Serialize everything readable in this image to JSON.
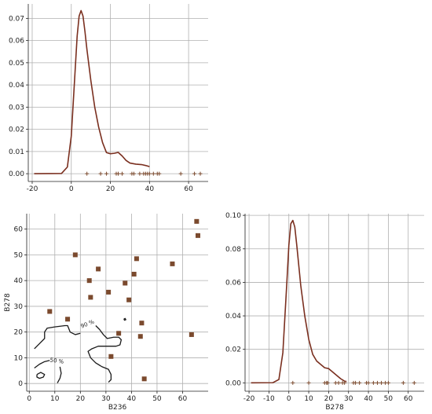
{
  "colors": {
    "curve": "#7a2f1f",
    "marker": "#7b4a2e",
    "contour": "#1a1a1a",
    "grid": "#b0b0b0"
  },
  "chart_data": [
    {
      "id": "kde_b236",
      "type": "line",
      "xlabel": "",
      "ylabel": "",
      "xlim": [
        -22,
        70
      ],
      "ylim": [
        -0.0035,
        0.0765
      ],
      "xticks": [
        -20,
        0,
        20,
        40,
        60
      ],
      "yticks": [
        0.0,
        0.01,
        0.02,
        0.03,
        0.04,
        0.05,
        0.06,
        0.07
      ],
      "grid": true,
      "density_x": [
        -19,
        -5,
        -2,
        0,
        2,
        3,
        4,
        5,
        6,
        7,
        8,
        10,
        12,
        14,
        16,
        18,
        20,
        22,
        24,
        26,
        28,
        30,
        33,
        36,
        38,
        40
      ],
      "density_y": [
        0.0,
        0.0001,
        0.003,
        0.017,
        0.047,
        0.062,
        0.071,
        0.0735,
        0.071,
        0.064,
        0.056,
        0.042,
        0.03,
        0.021,
        0.014,
        0.0095,
        0.009,
        0.0092,
        0.0096,
        0.008,
        0.006,
        0.0048,
        0.0043,
        0.0041,
        0.0037,
        0.0032
      ],
      "rug": [
        8,
        15,
        18,
        23,
        24,
        26,
        31,
        32,
        35,
        37,
        38,
        39,
        40,
        42,
        44,
        45,
        56,
        63,
        66
      ]
    },
    {
      "id": "scatter_b236_b278",
      "type": "scatter",
      "xlabel": "B236",
      "ylabel": "B278",
      "xlim": [
        -1,
        70
      ],
      "ylim": [
        -3,
        66
      ],
      "xticks": [
        0,
        10,
        20,
        30,
        40,
        50,
        60
      ],
      "yticks": [
        0,
        10,
        20,
        30,
        40,
        50,
        60
      ],
      "grid": true,
      "points": [
        [
          8,
          28
        ],
        [
          15,
          25
        ],
        [
          18,
          50
        ],
        [
          23.5,
          40
        ],
        [
          24,
          33.5
        ],
        [
          27,
          44.5
        ],
        [
          31,
          35.5
        ],
        [
          32,
          10.5
        ],
        [
          35,
          19.5
        ],
        [
          37.5,
          39
        ],
        [
          39,
          32.5
        ],
        [
          41,
          42.5
        ],
        [
          42,
          48.5
        ],
        [
          43.5,
          18.3
        ],
        [
          44,
          23.5
        ],
        [
          45,
          1.8
        ],
        [
          56,
          46.5
        ],
        [
          63.5,
          19
        ],
        [
          65.5,
          63
        ],
        [
          66,
          57.5
        ]
      ],
      "contours": [
        {
          "label": "90 %",
          "paths": [
            [
              [
                2,
                13.5
              ],
              [
                4,
                15.5
              ],
              [
                6,
                17.5
              ],
              [
                6,
                20
              ],
              [
                7,
                21.5
              ],
              [
                10,
                22
              ],
              [
                14,
                22.5
              ],
              [
                15,
                22.5
              ],
              [
                16,
                20
              ],
              [
                18,
                19
              ],
              [
                20,
                19.5
              ]
            ],
            [
              [
                26,
                22.5
              ],
              [
                27.5,
                21
              ],
              [
                29,
                19
              ],
              [
                30.5,
                17.5
              ],
              [
                33,
                18
              ],
              [
                35,
                18
              ],
              [
                36,
                17
              ],
              [
                35.5,
                15
              ],
              [
                34,
                14.5
              ],
              [
                30,
                14.5
              ],
              [
                27,
                14.5
              ],
              [
                24.5,
                13.5
              ],
              [
                23,
                12.5
              ],
              [
                24,
                10
              ],
              [
                26,
                8
              ],
              [
                28.5,
                6.5
              ],
              [
                31,
                5.5
              ],
              [
                32,
                3.5
              ],
              [
                32,
                1.5
              ],
              [
                31,
                0.5
              ]
            ],
            [
              [
                37,
                25
              ],
              [
                37.3,
                24.6
              ],
              [
                37.8,
                24.8
              ],
              [
                37.5,
                25.3
              ],
              [
                37,
                25
              ]
            ]
          ]
        },
        {
          "label": "50 %",
          "paths": [
            [
              [
                2,
                6
              ],
              [
                4,
                7.5
              ],
              [
                6,
                8.5
              ],
              [
                8,
                9
              ]
            ],
            [
              [
                12,
                6.5
              ],
              [
                12.5,
                4
              ],
              [
                12,
                2
              ],
              [
                11,
                0.2
              ]
            ],
            [
              [
                3,
                3.5
              ],
              [
                4.5,
                4.3
              ],
              [
                6,
                3.5
              ],
              [
                5.5,
                2.5
              ],
              [
                4,
                2
              ],
              [
                3,
                2.5
              ],
              [
                3,
                3.5
              ]
            ]
          ]
        }
      ]
    },
    {
      "id": "kde_b278",
      "type": "line",
      "xlabel": "B278",
      "ylabel": "",
      "xlim": [
        -22,
        68
      ],
      "ylim": [
        -0.005,
        0.101
      ],
      "xticks": [
        -20,
        -10,
        0,
        10,
        20,
        30,
        40,
        50,
        60
      ],
      "yticks": [
        0.0,
        0.02,
        0.04,
        0.06,
        0.08,
        0.1
      ],
      "grid": true,
      "density_x": [
        -19,
        -8,
        -5,
        -3,
        -1,
        0,
        1,
        2,
        3,
        4,
        5,
        6,
        8,
        10,
        12,
        14,
        16,
        18,
        20,
        22,
        24,
        26,
        28,
        29
      ],
      "density_y": [
        0.0,
        0.0001,
        0.002,
        0.018,
        0.06,
        0.082,
        0.095,
        0.097,
        0.093,
        0.082,
        0.07,
        0.058,
        0.04,
        0.026,
        0.017,
        0.013,
        0.011,
        0.009,
        0.0085,
        0.0065,
        0.0045,
        0.0025,
        0.001,
        0.0008
      ],
      "rug": [
        2,
        10,
        18,
        19,
        19.5,
        23.5,
        25,
        27,
        28,
        32.5,
        33.5,
        35.5,
        39,
        40,
        42.5,
        44.5,
        46.5,
        48.5,
        50,
        57.5,
        63
      ]
    }
  ]
}
